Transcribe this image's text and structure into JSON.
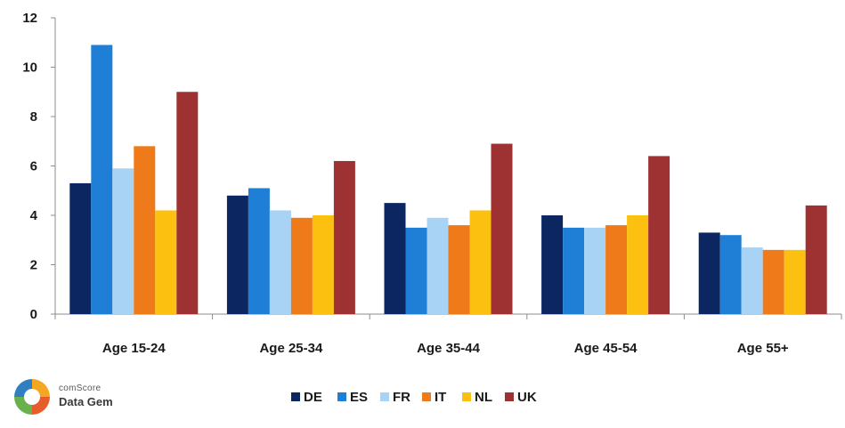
{
  "logo": {
    "brand": "comScore",
    "product": "Data Gem"
  },
  "chart_data": {
    "type": "bar",
    "title": "",
    "xlabel": "",
    "ylabel": "",
    "ylim": [
      0,
      12
    ],
    "yticks": [
      0,
      2,
      4,
      6,
      8,
      10,
      12
    ],
    "grid": false,
    "legend_position": "bottom",
    "categories": [
      "Age 15-24",
      "Age 25-34",
      "Age 35-44",
      "Age 45-54",
      "Age 55+"
    ],
    "series": [
      {
        "name": "DE",
        "color": "#0b2660",
        "values": [
          5.3,
          4.8,
          4.5,
          4.0,
          3.3
        ]
      },
      {
        "name": "ES",
        "color": "#1f7fd6",
        "values": [
          10.9,
          5.1,
          3.5,
          3.5,
          3.2
        ]
      },
      {
        "name": "FR",
        "color": "#a9d3f5",
        "values": [
          5.9,
          4.2,
          3.9,
          3.5,
          2.7
        ]
      },
      {
        "name": "IT",
        "color": "#ee7a1a",
        "values": [
          6.8,
          3.9,
          3.6,
          3.6,
          2.6
        ]
      },
      {
        "name": "NL",
        "color": "#fcc010",
        "values": [
          4.2,
          4.0,
          4.2,
          4.0,
          2.6
        ]
      },
      {
        "name": "UK",
        "color": "#9e3233",
        "values": [
          9.0,
          6.2,
          6.9,
          6.4,
          4.4
        ]
      }
    ]
  }
}
